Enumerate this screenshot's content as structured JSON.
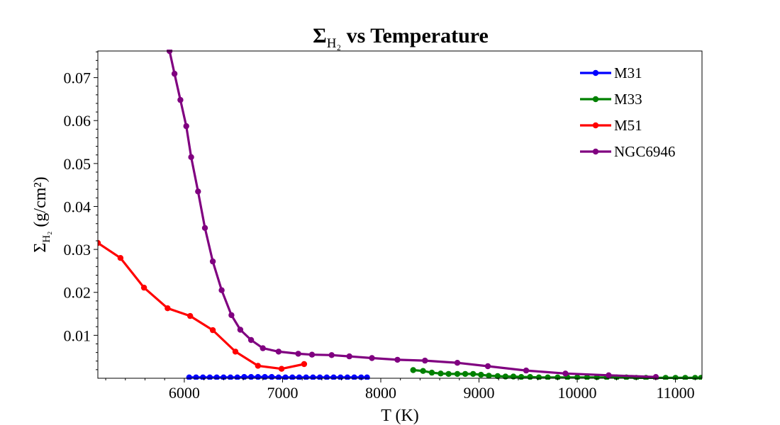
{
  "chart_data": {
    "type": "line",
    "title_prefix": "Σ",
    "title_sub": "H₂",
    "title_suffix": " vs Temperature",
    "xlabel": "T (K)",
    "ylabel_prefix": "Σ",
    "ylabel_sub": "H₂",
    "ylabel_unit": " (g/cm²)",
    "xlim": [
      5120,
      11270
    ],
    "ylim": [
      0.0,
      0.0762
    ],
    "xticks": [
      6000,
      7000,
      8000,
      9000,
      10000,
      11000
    ],
    "yticks": [
      0.01,
      0.02,
      0.03,
      0.04,
      0.05,
      0.06,
      0.07
    ],
    "ytick_labels": [
      "0.01",
      "0.02",
      "0.03",
      "0.04",
      "0.05",
      "0.06",
      "0.07"
    ],
    "xtick_labels": [
      "6000",
      "7000",
      "8000",
      "9000",
      "10000",
      "11000"
    ],
    "legend_position": "top-right",
    "grid": false,
    "series": [
      {
        "name": "M31",
        "color": "#0000ff",
        "x": [
          6050,
          6120,
          6190,
          6260,
          6330,
          6400,
          6470,
          6540,
          6610,
          6680,
          6750,
          6820,
          6890,
          6960,
          7030,
          7100,
          7170,
          7240,
          7310,
          7380,
          7450,
          7520,
          7590,
          7660,
          7730,
          7800,
          7860
        ],
        "y": [
          0.0002,
          0.0002,
          0.0002,
          0.0002,
          0.0002,
          0.0002,
          0.0002,
          0.0002,
          0.0003,
          0.0003,
          0.0003,
          0.0003,
          0.0003,
          0.0002,
          0.0002,
          0.0002,
          0.0002,
          0.0002,
          0.0002,
          0.0002,
          0.0002,
          0.0002,
          0.0002,
          0.0002,
          0.0002,
          0.0002,
          0.0002
        ]
      },
      {
        "name": "M33",
        "color": "#008000",
        "x": [
          8330,
          8430,
          8520,
          8610,
          8690,
          8780,
          8860,
          8940,
          9020,
          9100,
          9190,
          9270,
          9350,
          9430,
          9520,
          9610,
          9700,
          9800,
          9900,
          10000,
          10100,
          10200,
          10300,
          10400,
          10500,
          10600,
          10700,
          10800,
          10900,
          11000,
          11100,
          11200,
          11260
        ],
        "y": [
          0.0019,
          0.0017,
          0.0013,
          0.0011,
          0.001,
          0.001,
          0.001,
          0.001,
          0.0008,
          0.0006,
          0.0005,
          0.0004,
          0.0004,
          0.0003,
          0.0003,
          0.0002,
          0.0002,
          0.0002,
          0.0002,
          0.0002,
          0.0002,
          0.0002,
          0.0002,
          0.0002,
          0.0002,
          0.0001,
          0.0001,
          0.0001,
          0.0001,
          0.0001,
          0.0001,
          0.0001,
          0.0001
        ]
      },
      {
        "name": "M51",
        "color": "#ff0000",
        "x": [
          5120,
          5350,
          5590,
          5830,
          6060,
          6290,
          6520,
          6750,
          6990,
          7220
        ],
        "y": [
          0.0315,
          0.028,
          0.0211,
          0.0163,
          0.0145,
          0.0112,
          0.0062,
          0.0029,
          0.0022,
          0.0033
        ]
      },
      {
        "name": "NGC6946",
        "color": "#800080",
        "x": [
          5850,
          5900,
          5960,
          6020,
          6070,
          6140,
          6210,
          6290,
          6380,
          6480,
          6570,
          6680,
          6800,
          6960,
          7160,
          7300,
          7500,
          7680,
          7910,
          8170,
          8450,
          8780,
          9090,
          9480,
          9880,
          10320,
          10800
        ],
        "y": [
          0.0762,
          0.0709,
          0.0648,
          0.0587,
          0.0515,
          0.0435,
          0.035,
          0.0272,
          0.0205,
          0.0147,
          0.0113,
          0.0089,
          0.007,
          0.0062,
          0.0057,
          0.0055,
          0.0054,
          0.0051,
          0.0047,
          0.0043,
          0.0041,
          0.0036,
          0.0028,
          0.0018,
          0.0011,
          0.0007,
          0.0003
        ]
      }
    ]
  }
}
